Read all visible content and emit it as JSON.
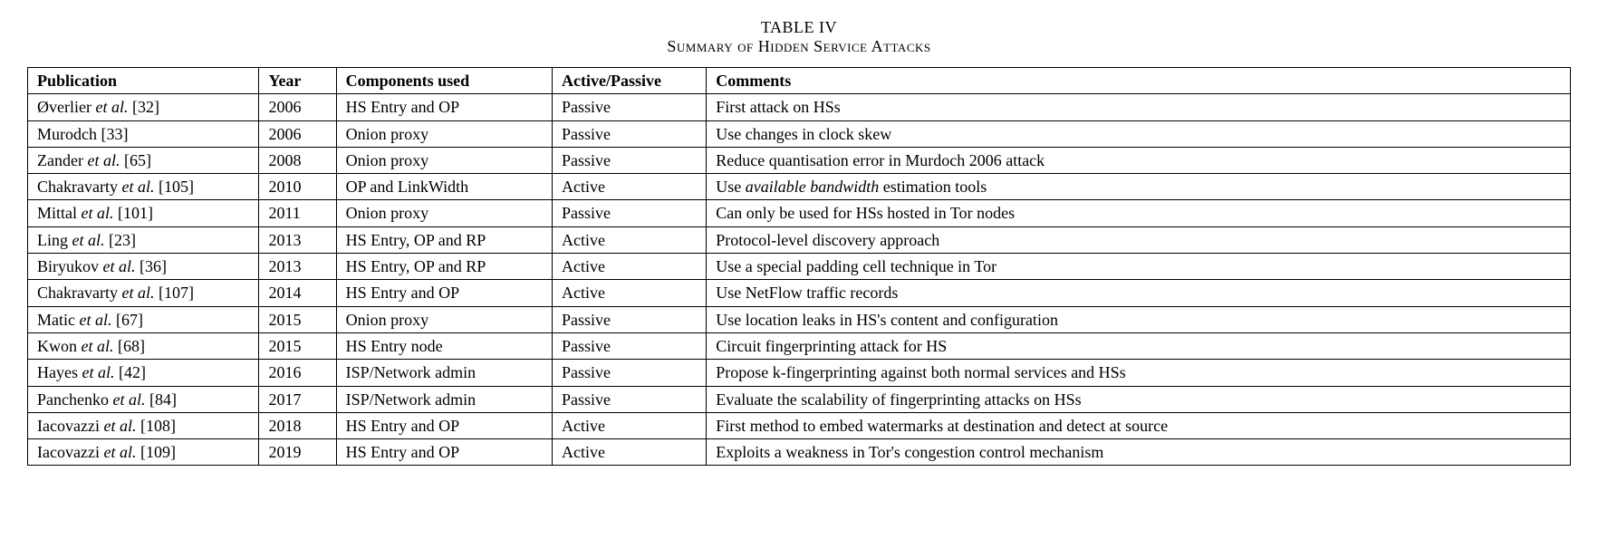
{
  "caption": {
    "number": "TABLE IV",
    "title": "Summary of Hidden Service Attacks"
  },
  "headers": {
    "publication": "Publication",
    "year": "Year",
    "components": "Components used",
    "active_passive": "Active/Passive",
    "comments": "Comments"
  },
  "rows": [
    {
      "author": "Øverlier",
      "etal": "et al.",
      "ref": "[32]",
      "year": "2006",
      "components": "HS Entry and OP",
      "active_passive": "Passive",
      "comments_pre": "First attack on HSs",
      "comments_italic": "",
      "comments_post": ""
    },
    {
      "author": "Murodch",
      "etal": "",
      "ref": "[33]",
      "year": "2006",
      "components": "Onion proxy",
      "active_passive": "Passive",
      "comments_pre": "Use changes in clock skew",
      "comments_italic": "",
      "comments_post": ""
    },
    {
      "author": "Zander",
      "etal": "et al.",
      "ref": "[65]",
      "year": "2008",
      "components": "Onion proxy",
      "active_passive": "Passive",
      "comments_pre": "Reduce quantisation error in Murdoch 2006 attack",
      "comments_italic": "",
      "comments_post": ""
    },
    {
      "author": "Chakravarty",
      "etal": "et al.",
      "ref": "[105]",
      "year": "2010",
      "components": "OP and LinkWidth",
      "active_passive": "Active",
      "comments_pre": "Use ",
      "comments_italic": "available bandwidth",
      "comments_post": " estimation tools"
    },
    {
      "author": "Mittal",
      "etal": "et al.",
      "ref": "[101]",
      "year": "2011",
      "components": "Onion proxy",
      "active_passive": "Passive",
      "comments_pre": "Can only be used for HSs hosted in Tor nodes",
      "comments_italic": "",
      "comments_post": ""
    },
    {
      "author": "Ling",
      "etal": "et al.",
      "ref": "[23]",
      "year": "2013",
      "components": "HS Entry, OP and RP",
      "active_passive": "Active",
      "comments_pre": "Protocol-level discovery approach",
      "comments_italic": "",
      "comments_post": ""
    },
    {
      "author": "Biryukov",
      "etal": "et al.",
      "ref": "[36]",
      "year": "2013",
      "components": "HS Entry, OP and RP",
      "active_passive": "Active",
      "comments_pre": "Use a special padding cell technique in Tor",
      "comments_italic": "",
      "comments_post": ""
    },
    {
      "author": "Chakravarty",
      "etal": "et al.",
      "ref": "[107]",
      "year": "2014",
      "components": "HS Entry and OP",
      "active_passive": "Active",
      "comments_pre": "Use NetFlow traffic records",
      "comments_italic": "",
      "comments_post": ""
    },
    {
      "author": "Matic",
      "etal": "et al.",
      "ref": "[67]",
      "year": "2015",
      "components": "Onion proxy",
      "active_passive": "Passive",
      "comments_pre": "Use location leaks in HS's content and configuration",
      "comments_italic": "",
      "comments_post": ""
    },
    {
      "author": "Kwon",
      "etal": "et al.",
      "ref": "[68]",
      "year": "2015",
      "components": "HS Entry node",
      "active_passive": "Passive",
      "comments_pre": "Circuit fingerprinting attack for HS",
      "comments_italic": "",
      "comments_post": ""
    },
    {
      "author": "Hayes",
      "etal": "et al.",
      "ref": "[42]",
      "year": "2016",
      "components": "ISP/Network admin",
      "active_passive": "Passive",
      "comments_pre": "Propose k-fingerprinting against both normal services and HSs",
      "comments_italic": "",
      "comments_post": ""
    },
    {
      "author": "Panchenko",
      "etal": "et al.",
      "ref": "[84]",
      "year": "2017",
      "components": "ISP/Network admin",
      "active_passive": "Passive",
      "comments_pre": "Evaluate the scalability of fingerprinting attacks on HSs",
      "comments_italic": "",
      "comments_post": ""
    },
    {
      "author": "Iacovazzi",
      "etal": "et al.",
      "ref": "[108]",
      "year": "2018",
      "components": "HS Entry and OP",
      "active_passive": "Active",
      "comments_pre": "First method to embed watermarks at destination and detect at source",
      "comments_italic": "",
      "comments_post": ""
    },
    {
      "author": "Iacovazzi",
      "etal": "et al.",
      "ref": "[109]",
      "year": "2019",
      "components": "HS Entry and OP",
      "active_passive": "Active",
      "comments_pre": "Exploits a weakness in Tor's congestion control mechanism",
      "comments_italic": "",
      "comments_post": ""
    }
  ]
}
